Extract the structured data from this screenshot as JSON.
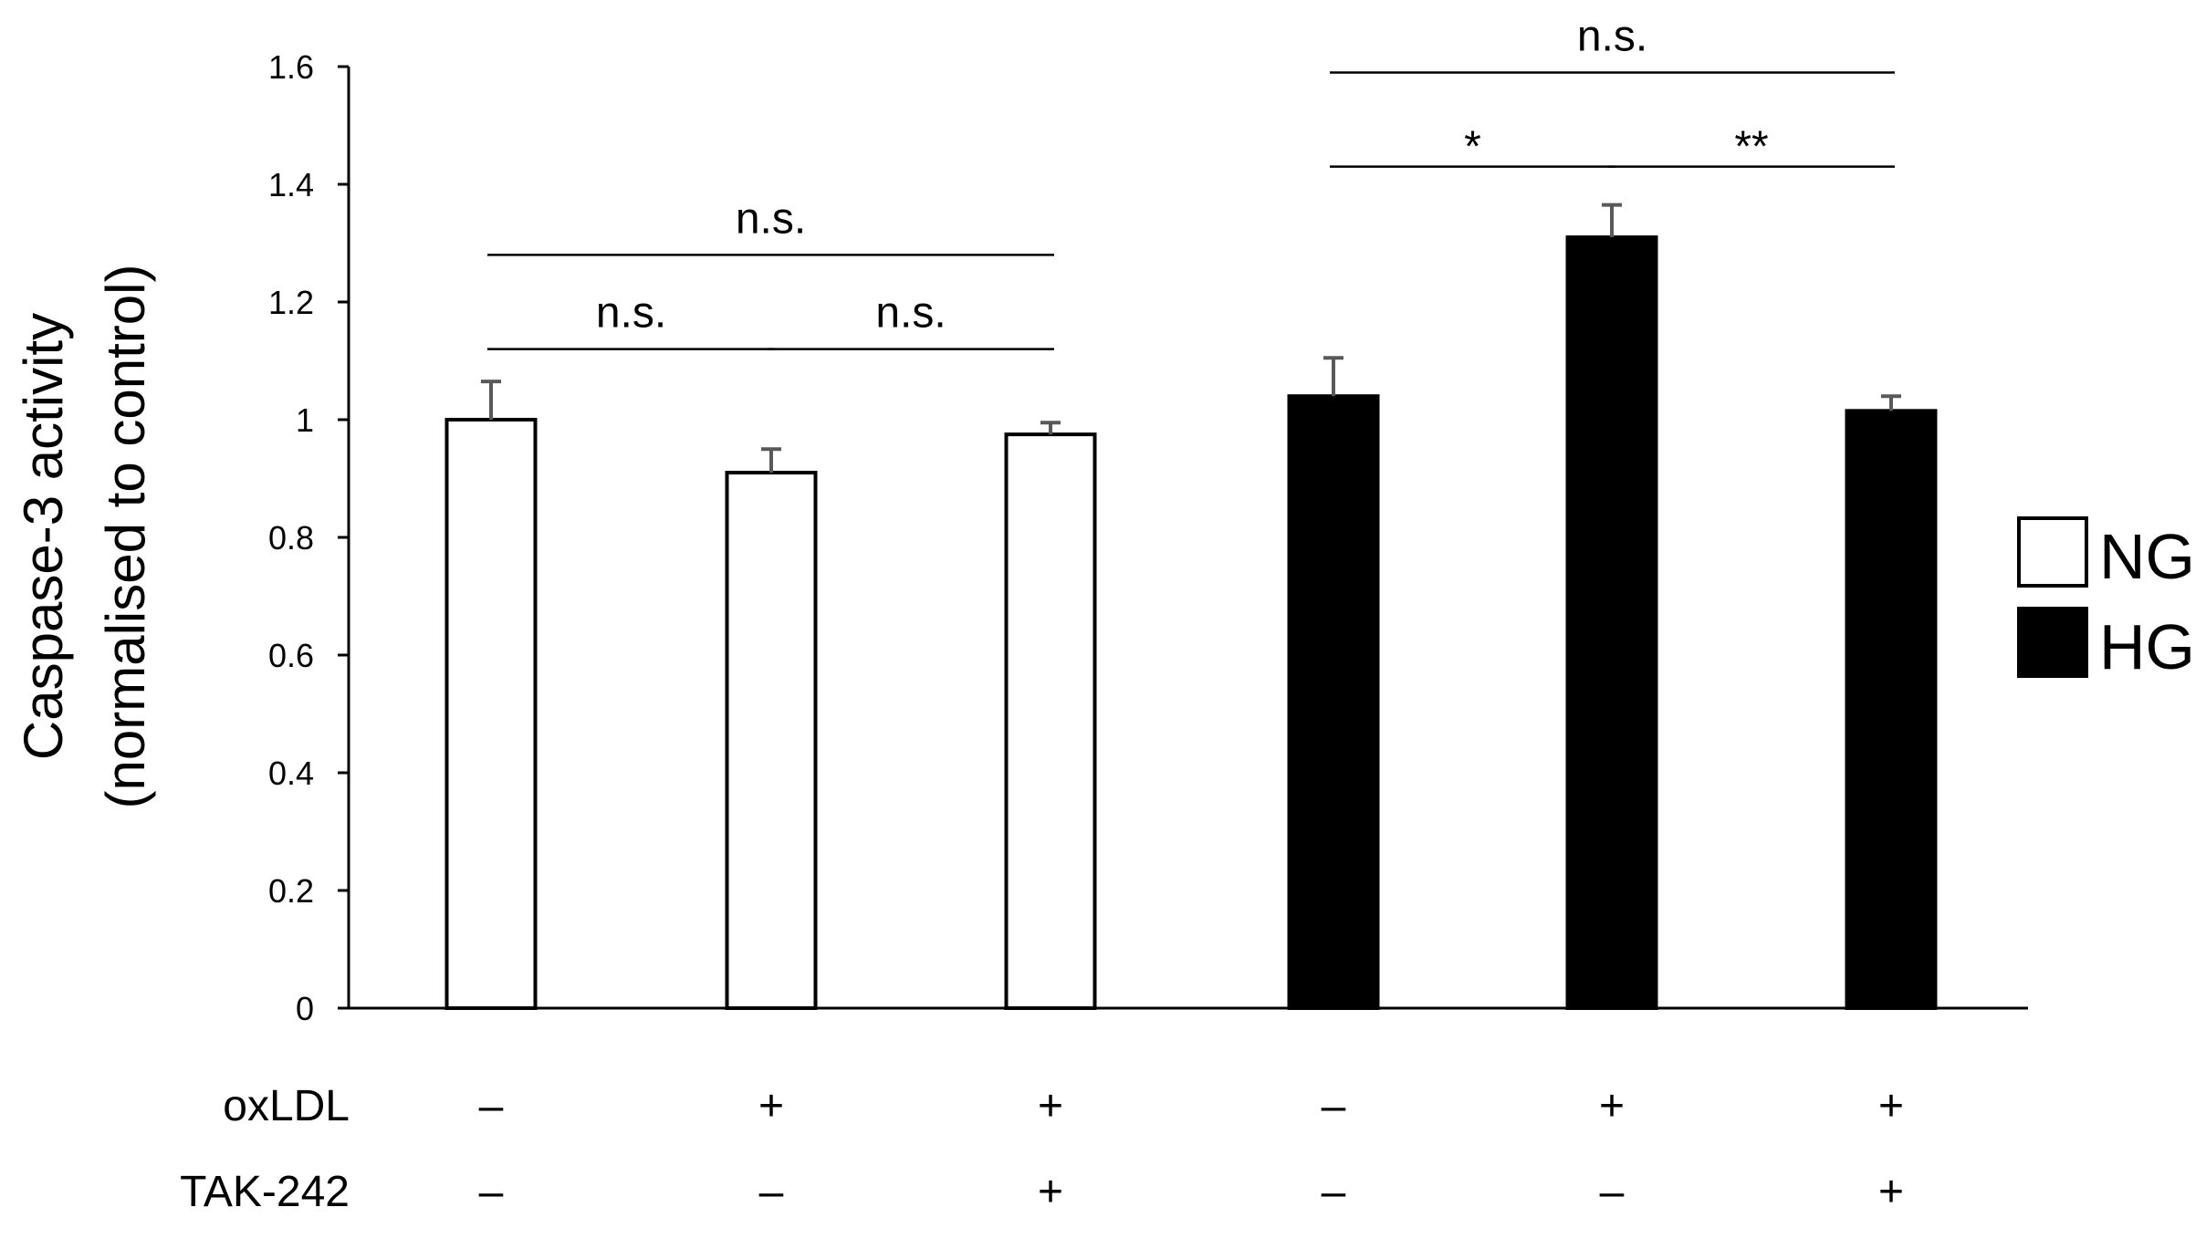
{
  "chart_data": {
    "type": "bar",
    "ylabel_line1": "Caspase-3 activity",
    "ylabel_line2": "(normalised to control)",
    "ylim": [
      0,
      1.6
    ],
    "yticks": [
      "0",
      "0.2",
      "0.4",
      "0.6",
      "0.8",
      "1",
      "1.2",
      "1.4",
      "1.6"
    ],
    "grid": false,
    "legend_position": "right",
    "legend": [
      {
        "label": "NG",
        "color": "#ffffff"
      },
      {
        "label": "HG",
        "color": "#000000"
      }
    ],
    "bars": [
      {
        "group": "NG",
        "value": 1.0,
        "error": 0.065
      },
      {
        "group": "NG",
        "value": 0.91,
        "error": 0.04
      },
      {
        "group": "NG",
        "value": 0.975,
        "error": 0.02
      },
      {
        "group": "HG",
        "value": 1.04,
        "error": 0.065
      },
      {
        "group": "HG",
        "value": 1.31,
        "error": 0.055
      },
      {
        "group": "HG",
        "value": 1.015,
        "error": 0.025
      }
    ],
    "conditions": [
      {
        "label": "oxLDL",
        "values": [
          "–",
          "+",
          "+",
          "–",
          "+",
          "+"
        ]
      },
      {
        "label": "TAK-242",
        "values": [
          "–",
          "–",
          "+",
          "–",
          "–",
          "+"
        ]
      }
    ],
    "significance": [
      {
        "from": 0,
        "to": 2,
        "level": 1.28,
        "label": "n.s."
      },
      {
        "from": 0,
        "to": 1,
        "level": 1.12,
        "label": "n.s."
      },
      {
        "from": 1,
        "to": 2,
        "level": 1.12,
        "label": "n.s."
      },
      {
        "from": 3,
        "to": 5,
        "level": 1.59,
        "label": "n.s."
      },
      {
        "from": 3,
        "to": 4,
        "level": 1.43,
        "label": "*"
      },
      {
        "from": 4,
        "to": 5,
        "level": 1.43,
        "label": "**"
      }
    ]
  }
}
